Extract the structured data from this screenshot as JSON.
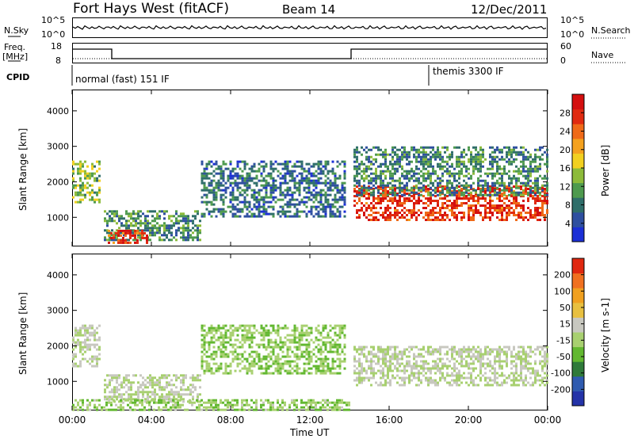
{
  "header": {
    "radar": "Fort Hays West (fitACF)",
    "beam": "Beam 14",
    "date": "12/Dec/2011"
  },
  "noise_panel": {
    "left_label": "N.Sky",
    "left_ticks": [
      "10^5",
      "10^0"
    ],
    "right_ticks": [
      "10^5",
      "10^0"
    ],
    "right_label": "N.Search"
  },
  "freq_panel": {
    "left_label_1": "Freq.",
    "left_label_2": "[MHz]",
    "left_ticks": [
      "18",
      "8"
    ],
    "right_ticks": [
      "60",
      "0"
    ],
    "right_label": "Nave"
  },
  "cpid": {
    "label": "CPID",
    "segment_1": "normal (fast) 151 IF",
    "segment_2": "themis 3300 IF"
  },
  "colors": {
    "power": [
      "#1b2fd6",
      "#2e4fa0",
      "#2f6e6a",
      "#4e9a4e",
      "#8dbb3a",
      "#f2d020",
      "#f4a11e",
      "#ef6a18",
      "#e02a10",
      "#d40f0f"
    ],
    "velocity": [
      "#2433a8",
      "#2f5bb0",
      "#2f7a3a",
      "#62b830",
      "#a8d070",
      "#c8c8c0",
      "#e8c040",
      "#f0a020",
      "#f07020",
      "#e02810"
    ]
  },
  "chart_data": [
    {
      "type": "heatmap",
      "name": "Power panel",
      "xlabel": "",
      "ylabel": "Slant Range [km]",
      "x_ticks": [
        "00:00",
        "04:00",
        "08:00",
        "12:00",
        "16:00",
        "20:00",
        "00:00"
      ],
      "y_ticks": [
        "1000",
        "2000",
        "3000",
        "4000"
      ],
      "ylim": [
        180,
        4600
      ],
      "colorbar": {
        "label": "Power [dB]",
        "ticks": [
          "28",
          "24",
          "20",
          "16",
          "12",
          "8",
          "4"
        ],
        "range": [
          0,
          32
        ]
      },
      "echo_regions": [
        {
          "t0": 0.0,
          "t1": 1.4,
          "r0": 1400,
          "r1": 2600,
          "val": 14
        },
        {
          "t0": 1.6,
          "t1": 6.5,
          "r0": 350,
          "r1": 1200,
          "val": 10
        },
        {
          "t0": 1.8,
          "t1": 3.8,
          "r0": 300,
          "r1": 650,
          "val": 26
        },
        {
          "t0": 6.5,
          "t1": 13.8,
          "r0": 1000,
          "r1": 2600,
          "val": 7
        },
        {
          "t0": 14.2,
          "t1": 24.0,
          "r0": 900,
          "r1": 1900,
          "val": 27
        },
        {
          "t0": 14.2,
          "t1": 24.0,
          "r0": 1600,
          "r1": 3000,
          "val": 9
        }
      ]
    },
    {
      "type": "heatmap",
      "name": "Velocity panel",
      "xlabel": "Time UT",
      "ylabel": "Slant Range [km]",
      "x_ticks": [
        "00:00",
        "04:00",
        "08:00",
        "12:00",
        "16:00",
        "20:00",
        "00:00"
      ],
      "y_ticks": [
        "1000",
        "2000",
        "3000",
        "4000"
      ],
      "ylim": [
        180,
        4600
      ],
      "colorbar": {
        "label_main": "Velocity",
        "label_unit": "[m s-1]",
        "ticks": [
          "200",
          "100",
          "50",
          "15",
          "-15",
          "-50",
          "-100",
          "-200"
        ],
        "range": [
          -250,
          250
        ]
      },
      "echo_regions": [
        {
          "t0": 0.0,
          "t1": 1.4,
          "r0": 1400,
          "r1": 2600,
          "val": 0
        },
        {
          "t0": 1.6,
          "t1": 6.5,
          "r0": 450,
          "r1": 1200,
          "val": 0
        },
        {
          "t0": 0.0,
          "t1": 14.0,
          "r0": 200,
          "r1": 500,
          "val": -40
        },
        {
          "t0": 6.5,
          "t1": 13.8,
          "r0": 1200,
          "r1": 2600,
          "val": -45
        },
        {
          "t0": 14.2,
          "t1": 24.0,
          "r0": 900,
          "r1": 2000,
          "val": 0
        }
      ]
    }
  ]
}
